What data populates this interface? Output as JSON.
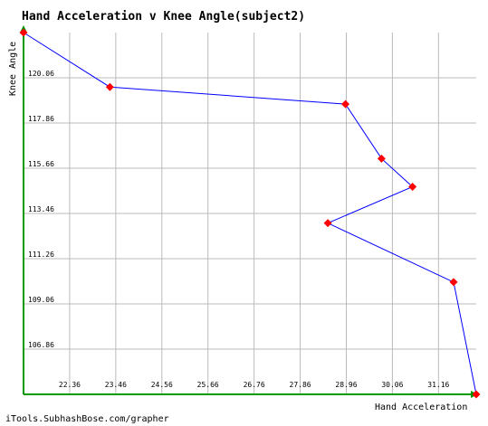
{
  "chart_data": {
    "type": "line",
    "title": "Hand Acceleration v Knee Angle(subject2)",
    "xlabel": "Hand Acceleration",
    "ylabel": "Knee Angle",
    "x_ticks": [
      "22.36",
      "23.46",
      "24.56",
      "25.66",
      "26.76",
      "27.86",
      "28.96",
      "30.06",
      "31.16"
    ],
    "y_ticks": [
      "120.06",
      "117.86",
      "115.66",
      "113.46",
      "111.26",
      "109.06",
      "106.86"
    ],
    "xlim": [
      21.26,
      32.06
    ],
    "ylim": [
      104.66,
      122.26
    ],
    "grid": true,
    "series": [
      {
        "color": "#0000ff",
        "marker_color": "#ff0000",
        "points": [
          {
            "x": 21.26,
            "y": 122.26
          },
          {
            "x": 23.32,
            "y": 119.61
          },
          {
            "x": 28.94,
            "y": 118.78
          },
          {
            "x": 29.8,
            "y": 116.13
          },
          {
            "x": 30.54,
            "y": 114.76
          },
          {
            "x": 28.52,
            "y": 112.99
          },
          {
            "x": 31.52,
            "y": 110.12
          },
          {
            "x": 32.06,
            "y": 104.66
          }
        ]
      }
    ],
    "axis_color": "#009900",
    "grid_color": "#bbbbbb"
  },
  "footer": "iTools.SubhashBose.com/grapher"
}
